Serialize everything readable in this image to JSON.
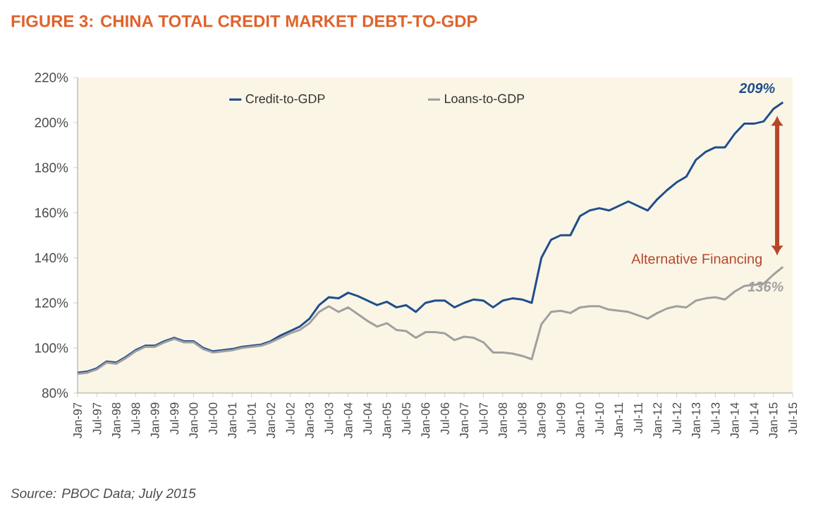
{
  "chart_data": {
    "type": "line",
    "title": "FIGURE 3: CHINA TOTAL CREDIT MARKET DEBT-TO-GDP",
    "categories": [
      "Jan-97",
      null,
      "Jul-97",
      null,
      "Jan-98",
      null,
      "Jul-98",
      null,
      "Jan-99",
      null,
      "Jul-99",
      null,
      "Jan-00",
      null,
      "Jul-00",
      null,
      "Jan-01",
      null,
      "Jul-01",
      null,
      "Jan-02",
      null,
      "Jul-02",
      null,
      "Jan-03",
      null,
      "Jul-03",
      null,
      "Jan-04",
      null,
      "Jul-04",
      null,
      "Jan-05",
      null,
      "Jul-05",
      null,
      "Jan-06",
      null,
      "Jul-06",
      null,
      "Jan-07",
      null,
      "Jul-07",
      null,
      "Jan-08",
      null,
      "Jul-08",
      null,
      "Jan-09",
      null,
      "Jul-09",
      null,
      "Jan-10",
      null,
      "Jul-10",
      null,
      "Jan-11",
      null,
      "Jul-11",
      null,
      "Jan-12",
      null,
      "Jul-12",
      null,
      "Jan-13",
      null,
      "Jul-13",
      null,
      "Jan-14",
      null,
      "Jul-14",
      null,
      "Jan-15",
      null,
      "Jul-15"
    ],
    "series": [
      {
        "name": "Credit-to-GDP",
        "color": "#1f4e8c",
        "values": [
          89,
          89.5,
          91,
          94,
          93.5,
          96,
          99,
          101,
          101,
          103,
          104.5,
          103,
          103,
          100,
          98.5,
          99,
          99.5,
          100.5,
          101,
          101.5,
          103,
          105.5,
          107.5,
          109.5,
          113,
          119,
          122.5,
          122,
          124.5,
          123,
          121,
          119,
          120.5,
          118,
          119,
          116,
          120,
          121,
          121,
          118,
          120,
          121.5,
          121,
          118,
          121,
          122,
          121.5,
          120,
          140,
          148,
          150,
          150,
          158.5,
          161,
          162,
          161,
          163,
          165,
          163,
          161,
          166,
          170,
          173.5,
          176,
          183.5,
          187,
          189,
          189,
          195,
          199.5,
          199.5,
          200.5,
          206,
          209,
          null
        ]
      },
      {
        "name": "Loans-to-GDP",
        "color": "#a0a0a0",
        "values": [
          88.5,
          89,
          90.5,
          93.5,
          93,
          95.5,
          98.5,
          100.5,
          100.5,
          102.5,
          104,
          102.5,
          102.5,
          99.5,
          98,
          98.5,
          99,
          100,
          100.5,
          101,
          102.5,
          104.5,
          106.5,
          108,
          111,
          116,
          118.5,
          116,
          118,
          115,
          112,
          109.5,
          111,
          108,
          107.5,
          104.5,
          107,
          107,
          106.5,
          103.5,
          105,
          104.5,
          102.5,
          98,
          98,
          97.5,
          96.5,
          95,
          110.5,
          116,
          116.5,
          115.5,
          118,
          118.5,
          118.5,
          117,
          116.5,
          116,
          114.5,
          113,
          115.5,
          117.5,
          118.5,
          118,
          121,
          122,
          122.5,
          121.5,
          125,
          127.5,
          128,
          128.5,
          132.5,
          136,
          null
        ]
      }
    ],
    "ylim": [
      80,
      220
    ],
    "yticks": [
      {
        "value": 80,
        "label": "80%"
      },
      {
        "value": 100,
        "label": "100%"
      },
      {
        "value": 120,
        "label": "120%"
      },
      {
        "value": 140,
        "label": "140%"
      },
      {
        "value": 160,
        "label": "160%"
      },
      {
        "value": 180,
        "label": "180%"
      },
      {
        "value": 200,
        "label": "200%"
      },
      {
        "value": 220,
        "label": "220%"
      }
    ],
    "legend": "top",
    "annotations": [
      "209%",
      "136%",
      "Alternative Financing",
      "Source: PBOC Data; July 2015"
    ]
  }
}
